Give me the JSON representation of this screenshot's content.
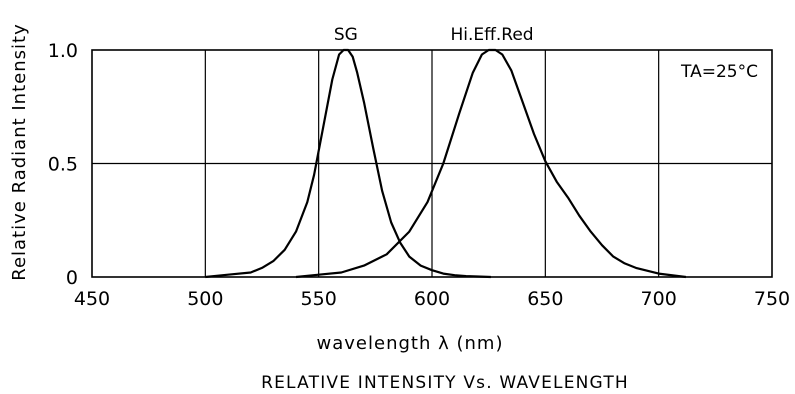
{
  "chart_data": {
    "type": "line",
    "title": "RELATIVE INTENSITY Vs. WAVELENGTH",
    "xlabel": "wavelength λ  (nm)",
    "ylabel": "Relative Radiant Intensity",
    "xlim": [
      450,
      750
    ],
    "ylim": [
      0,
      1.0
    ],
    "x_ticks": [
      450,
      500,
      550,
      600,
      650,
      700,
      750
    ],
    "y_ticks": [
      0,
      0.5,
      1.0
    ],
    "x_tick_labels": [
      "450",
      "500",
      "550",
      "600",
      "650",
      "700",
      "750"
    ],
    "y_tick_labels": [
      "0",
      "0.5",
      "1.0"
    ],
    "grid": true,
    "annotation": "TA=25°C",
    "series": [
      {
        "name": "SG",
        "x": [
          500,
          510,
          520,
          525,
          530,
          535,
          540,
          545,
          548,
          552,
          556,
          559,
          561,
          563,
          565,
          567,
          570,
          574,
          578,
          582,
          586,
          590,
          595,
          600,
          605,
          610,
          615,
          620,
          626
        ],
        "y": [
          0.0,
          0.01,
          0.02,
          0.04,
          0.07,
          0.12,
          0.2,
          0.33,
          0.45,
          0.66,
          0.87,
          0.98,
          1.0,
          1.0,
          0.97,
          0.9,
          0.77,
          0.57,
          0.38,
          0.24,
          0.15,
          0.09,
          0.05,
          0.03,
          0.015,
          0.008,
          0.004,
          0.002,
          0.0
        ]
      },
      {
        "name": "Hi.Eff.Red",
        "x": [
          540,
          550,
          560,
          570,
          580,
          590,
          598,
          605,
          612,
          618,
          622,
          625,
          628,
          631,
          635,
          640,
          645,
          650,
          655,
          660,
          665,
          670,
          675,
          680,
          685,
          690,
          700,
          712
        ],
        "y": [
          0.0,
          0.01,
          0.02,
          0.05,
          0.1,
          0.2,
          0.33,
          0.5,
          0.72,
          0.9,
          0.98,
          1.0,
          1.0,
          0.98,
          0.91,
          0.77,
          0.63,
          0.51,
          0.42,
          0.35,
          0.27,
          0.2,
          0.14,
          0.09,
          0.06,
          0.04,
          0.015,
          0.0
        ]
      }
    ]
  }
}
